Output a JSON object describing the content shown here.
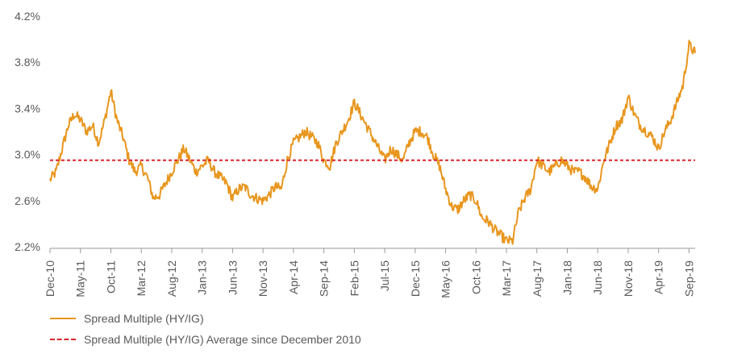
{
  "chart_data": {
    "type": "line",
    "title": "",
    "xlabel": "",
    "ylabel": "",
    "ylim": [
      2.2,
      4.2
    ],
    "y_ticks": [
      "4.2%",
      "3.8%",
      "3.4%",
      "3.0%",
      "2.6%",
      "2.2%"
    ],
    "y_tick_values": [
      4.2,
      3.8,
      3.4,
      3.0,
      2.6,
      2.2
    ],
    "x_tick_labels": [
      "Dec-10",
      "May-11",
      "Oct-11",
      "Mar-12",
      "Aug-12",
      "Jan-13",
      "Jun-13",
      "Nov-13",
      "Apr-14",
      "Sep-14",
      "Feb-15",
      "Jul-15",
      "Dec-15",
      "May-16",
      "Oct-16",
      "Mar-17",
      "Aug-17",
      "Jan-18",
      "Jun-18",
      "Nov-18",
      "Apr-19",
      "Sep-19"
    ],
    "grid": false,
    "legend_position": "bottom-left",
    "series": [
      {
        "name": "Spread Multiple (HY/IG)",
        "color": "#E8961E",
        "style": "solid",
        "x": [
          "2010-12",
          "2011-01",
          "2011-02",
          "2011-03",
          "2011-04",
          "2011-05",
          "2011-06",
          "2011-07",
          "2011-08",
          "2011-09",
          "2011-10",
          "2011-11",
          "2011-12",
          "2012-01",
          "2012-02",
          "2012-03",
          "2012-04",
          "2012-05",
          "2012-06",
          "2012-07",
          "2012-08",
          "2012-09",
          "2012-10",
          "2012-11",
          "2012-12",
          "2013-01",
          "2013-02",
          "2013-03",
          "2013-04",
          "2013-05",
          "2013-06",
          "2013-07",
          "2013-08",
          "2013-09",
          "2013-10",
          "2013-11",
          "2013-12",
          "2014-01",
          "2014-02",
          "2014-03",
          "2014-04",
          "2014-05",
          "2014-06",
          "2014-07",
          "2014-08",
          "2014-09",
          "2014-10",
          "2014-11",
          "2014-12",
          "2015-01",
          "2015-02",
          "2015-03",
          "2015-04",
          "2015-05",
          "2015-06",
          "2015-07",
          "2015-08",
          "2015-09",
          "2015-10",
          "2015-11",
          "2015-12",
          "2016-01",
          "2016-02",
          "2016-03",
          "2016-04",
          "2016-05",
          "2016-06",
          "2016-07",
          "2016-08",
          "2016-09",
          "2016-10",
          "2016-11",
          "2016-12",
          "2017-01",
          "2017-02",
          "2017-03",
          "2017-04",
          "2017-05",
          "2017-06",
          "2017-07",
          "2017-08",
          "2017-09",
          "2017-10",
          "2017-11",
          "2017-12",
          "2018-01",
          "2018-02",
          "2018-03",
          "2018-04",
          "2018-05",
          "2018-06",
          "2018-07",
          "2018-08",
          "2018-09",
          "2018-10",
          "2018-11",
          "2018-12",
          "2019-01",
          "2019-02",
          "2019-03",
          "2019-04",
          "2019-05",
          "2019-06",
          "2019-07",
          "2019-08",
          "2019-09",
          "2019-10"
        ],
        "values": [
          2.78,
          2.85,
          3.05,
          3.25,
          3.35,
          3.3,
          3.2,
          3.25,
          3.1,
          3.3,
          3.55,
          3.3,
          3.15,
          2.95,
          2.85,
          2.9,
          2.8,
          2.62,
          2.65,
          2.75,
          2.85,
          2.95,
          3.05,
          2.95,
          2.85,
          2.9,
          2.95,
          2.85,
          2.8,
          2.75,
          2.62,
          2.7,
          2.72,
          2.65,
          2.62,
          2.6,
          2.65,
          2.72,
          2.7,
          2.95,
          3.1,
          3.15,
          3.2,
          3.15,
          3.1,
          2.95,
          2.9,
          3.1,
          3.2,
          3.3,
          3.45,
          3.35,
          3.25,
          3.15,
          3.05,
          2.95,
          3.05,
          3.0,
          2.95,
          3.1,
          3.2,
          3.2,
          3.15,
          3.0,
          2.9,
          2.7,
          2.55,
          2.52,
          2.6,
          2.65,
          2.6,
          2.45,
          2.42,
          2.35,
          2.3,
          2.25,
          2.25,
          2.5,
          2.62,
          2.7,
          2.95,
          2.9,
          2.85,
          2.9,
          2.95,
          2.9,
          2.85,
          2.85,
          2.8,
          2.72,
          2.7,
          2.95,
          3.1,
          3.25,
          3.3,
          3.5,
          3.35,
          3.25,
          3.2,
          3.15,
          3.05,
          3.2,
          3.3,
          3.45,
          3.6,
          3.95,
          3.88
        ]
      },
      {
        "name": "Spread Multiple (HY/IG) Average since December 2010",
        "color": "#D9252B",
        "style": "dashed",
        "constant_value": 2.95
      }
    ]
  }
}
